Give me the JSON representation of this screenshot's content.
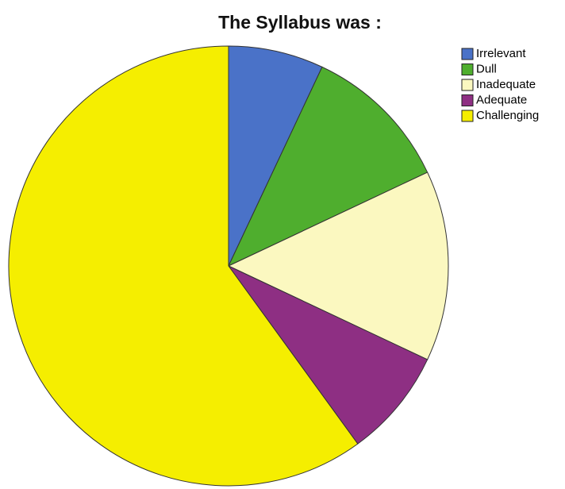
{
  "chart_data": {
    "type": "pie",
    "title": "The Syllabus was :",
    "categories": [
      "Irrelevant",
      "Dull",
      "Inadequate",
      "Adequate",
      "Challenging"
    ],
    "values": [
      7,
      11,
      14,
      8,
      60
    ],
    "colors": [
      "#4a72c8",
      "#4fae2e",
      "#fbf8c0",
      "#8e2f83",
      "#f5ee00"
    ],
    "legend": "right"
  }
}
